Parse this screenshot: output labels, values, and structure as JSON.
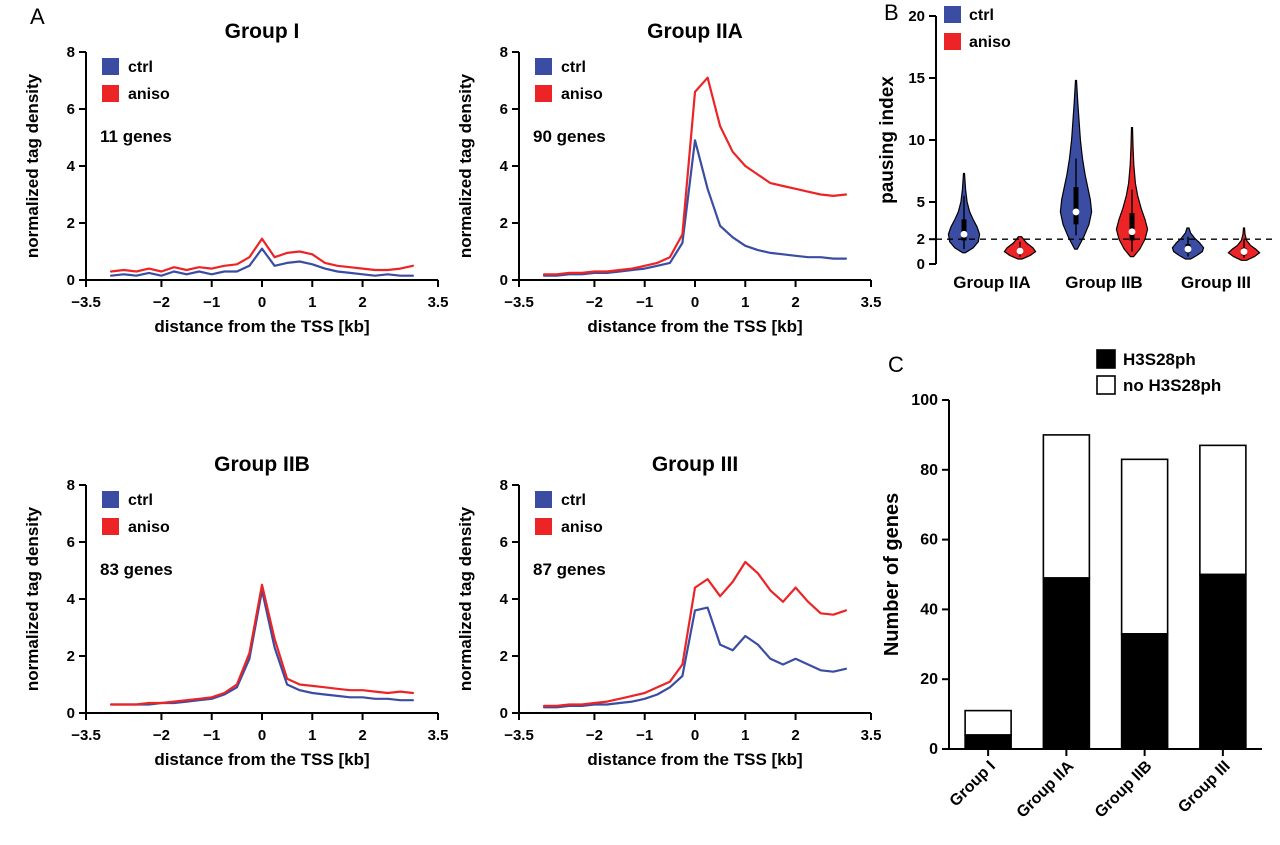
{
  "panel_labels": {
    "a": "A",
    "b": "B",
    "c": "C"
  },
  "colors": {
    "ctrl": "#3b4da2",
    "aniso": "#ec2426",
    "axis": "#000000",
    "black": "#000000",
    "white": "#ffffff"
  },
  "chart_data": [
    {
      "id": "group-i",
      "type": "line",
      "title": "Group I",
      "genes_label": "11 genes",
      "xlabel": "distance from the TSS [kb]",
      "ylabel": "normalized tag density",
      "xlim": [
        -3.5,
        3.5
      ],
      "ylim": [
        0,
        8
      ],
      "xticks": [
        -3.5,
        -2,
        -1,
        0,
        1,
        2,
        3.5
      ],
      "yticks": [
        0,
        2,
        4,
        6,
        8
      ],
      "legend": [
        {
          "name": "ctrl",
          "color_key": "ctrl"
        },
        {
          "name": "aniso",
          "color_key": "aniso"
        }
      ],
      "x": [
        -3,
        -2.75,
        -2.5,
        -2.25,
        -2,
        -1.75,
        -1.5,
        -1.25,
        -1,
        -0.75,
        -0.5,
        -0.25,
        0,
        0.25,
        0.5,
        0.75,
        1,
        1.25,
        1.5,
        1.75,
        2,
        2.25,
        2.5,
        2.75,
        3
      ],
      "series": [
        {
          "name": "ctrl",
          "color_key": "ctrl",
          "values": [
            0.15,
            0.2,
            0.15,
            0.25,
            0.15,
            0.3,
            0.2,
            0.3,
            0.2,
            0.3,
            0.3,
            0.5,
            1.1,
            0.5,
            0.6,
            0.65,
            0.55,
            0.4,
            0.3,
            0.25,
            0.2,
            0.15,
            0.2,
            0.15,
            0.15
          ]
        },
        {
          "name": "aniso",
          "color_key": "aniso",
          "values": [
            0.3,
            0.35,
            0.3,
            0.4,
            0.3,
            0.45,
            0.35,
            0.45,
            0.4,
            0.5,
            0.55,
            0.8,
            1.45,
            0.8,
            0.95,
            1.0,
            0.9,
            0.6,
            0.5,
            0.45,
            0.4,
            0.35,
            0.35,
            0.4,
            0.5
          ]
        }
      ]
    },
    {
      "id": "group-iia",
      "type": "line",
      "title": "Group IIA",
      "genes_label": "90 genes",
      "xlabel": "distance from the TSS [kb]",
      "ylabel": "normalized tag density",
      "xlim": [
        -3.5,
        3.5
      ],
      "ylim": [
        0,
        8
      ],
      "xticks": [
        -3.5,
        -2,
        -1,
        0,
        1,
        2,
        3.5
      ],
      "yticks": [
        0,
        2,
        4,
        6,
        8
      ],
      "legend": [
        {
          "name": "ctrl",
          "color_key": "ctrl"
        },
        {
          "name": "aniso",
          "color_key": "aniso"
        }
      ],
      "x": [
        -3,
        -2.75,
        -2.5,
        -2.25,
        -2,
        -1.75,
        -1.5,
        -1.25,
        -1,
        -0.75,
        -0.5,
        -0.25,
        0,
        0.25,
        0.5,
        0.75,
        1,
        1.25,
        1.5,
        1.75,
        2,
        2.25,
        2.5,
        2.75,
        3
      ],
      "series": [
        {
          "name": "ctrl",
          "color_key": "ctrl",
          "values": [
            0.15,
            0.15,
            0.2,
            0.2,
            0.25,
            0.25,
            0.3,
            0.35,
            0.4,
            0.5,
            0.6,
            1.3,
            4.9,
            3.2,
            1.9,
            1.5,
            1.2,
            1.05,
            0.95,
            0.9,
            0.85,
            0.8,
            0.8,
            0.75,
            0.75
          ]
        },
        {
          "name": "aniso",
          "color_key": "aniso",
          "values": [
            0.2,
            0.2,
            0.25,
            0.25,
            0.3,
            0.3,
            0.35,
            0.4,
            0.5,
            0.6,
            0.8,
            1.6,
            6.6,
            7.1,
            5.4,
            4.5,
            4.0,
            3.7,
            3.4,
            3.3,
            3.2,
            3.1,
            3.0,
            2.95,
            3.0
          ]
        }
      ]
    },
    {
      "id": "group-iib",
      "type": "line",
      "title": "Group IIB",
      "genes_label": "83 genes",
      "xlabel": "distance from the TSS [kb]",
      "ylabel": "normalized tag density",
      "xlim": [
        -3.5,
        3.5
      ],
      "ylim": [
        0,
        8
      ],
      "xticks": [
        -3.5,
        -2,
        -1,
        0,
        1,
        2,
        3.5
      ],
      "yticks": [
        0,
        2,
        4,
        6,
        8
      ],
      "legend": [
        {
          "name": "ctrl",
          "color_key": "ctrl"
        },
        {
          "name": "aniso",
          "color_key": "aniso"
        }
      ],
      "x": [
        -3,
        -2.75,
        -2.5,
        -2.25,
        -2,
        -1.75,
        -1.5,
        -1.25,
        -1,
        -0.75,
        -0.5,
        -0.25,
        0,
        0.25,
        0.5,
        0.75,
        1,
        1.25,
        1.5,
        1.75,
        2,
        2.25,
        2.5,
        2.75,
        3
      ],
      "series": [
        {
          "name": "ctrl",
          "color_key": "ctrl",
          "values": [
            0.3,
            0.3,
            0.3,
            0.3,
            0.35,
            0.35,
            0.4,
            0.45,
            0.5,
            0.65,
            0.9,
            1.9,
            4.3,
            2.3,
            1.0,
            0.8,
            0.7,
            0.65,
            0.6,
            0.55,
            0.55,
            0.5,
            0.5,
            0.45,
            0.45
          ]
        },
        {
          "name": "aniso",
          "color_key": "aniso",
          "values": [
            0.3,
            0.3,
            0.3,
            0.35,
            0.35,
            0.4,
            0.45,
            0.5,
            0.55,
            0.7,
            1.0,
            2.1,
            4.5,
            2.6,
            1.2,
            1.0,
            0.95,
            0.9,
            0.85,
            0.8,
            0.8,
            0.75,
            0.7,
            0.75,
            0.7
          ]
        }
      ]
    },
    {
      "id": "group-iii",
      "type": "line",
      "title": "Group III",
      "genes_label": "87 genes",
      "xlabel": "distance from the TSS [kb]",
      "ylabel": "normalized tag density",
      "xlim": [
        -3.5,
        3.5
      ],
      "ylim": [
        0,
        8
      ],
      "xticks": [
        -3.5,
        -2,
        -1,
        0,
        1,
        2,
        3.5
      ],
      "yticks": [
        0,
        2,
        4,
        6,
        8
      ],
      "legend": [
        {
          "name": "ctrl",
          "color_key": "ctrl"
        },
        {
          "name": "aniso",
          "color_key": "aniso"
        }
      ],
      "x": [
        -3,
        -2.75,
        -2.5,
        -2.25,
        -2,
        -1.75,
        -1.5,
        -1.25,
        -1,
        -0.75,
        -0.5,
        -0.25,
        0,
        0.25,
        0.5,
        0.75,
        1,
        1.25,
        1.5,
        1.75,
        2,
        2.25,
        2.5,
        2.75,
        3
      ],
      "series": [
        {
          "name": "ctrl",
          "color_key": "ctrl",
          "values": [
            0.2,
            0.2,
            0.25,
            0.25,
            0.3,
            0.3,
            0.35,
            0.4,
            0.5,
            0.65,
            0.9,
            1.3,
            3.6,
            3.7,
            2.4,
            2.2,
            2.7,
            2.4,
            1.9,
            1.7,
            1.9,
            1.7,
            1.5,
            1.45,
            1.55
          ]
        },
        {
          "name": "aniso",
          "color_key": "aniso",
          "values": [
            0.25,
            0.25,
            0.3,
            0.3,
            0.35,
            0.4,
            0.5,
            0.6,
            0.7,
            0.9,
            1.1,
            1.7,
            4.4,
            4.7,
            4.1,
            4.6,
            5.3,
            4.9,
            4.3,
            3.9,
            4.4,
            3.9,
            3.5,
            3.45,
            3.6
          ]
        }
      ]
    },
    {
      "id": "pausing-violin",
      "type": "violin",
      "ylabel": "pausing index",
      "ylim": [
        0,
        20
      ],
      "yticks": [
        0,
        2,
        5,
        10,
        15,
        20
      ],
      "dashed_line_y": 2,
      "legend": [
        {
          "name": "ctrl",
          "color_key": "ctrl"
        },
        {
          "name": "aniso",
          "color_key": "aniso"
        }
      ],
      "groups": [
        {
          "label": "Group IIA",
          "violins": [
            {
              "series": "ctrl",
              "color_key": "ctrl",
              "median": 2.4,
              "box": [
                1.9,
                3.6
              ],
              "whisker": [
                1.2,
                5.5
              ],
              "profile": [
                [
                  0.9,
                  0.05
                ],
                [
                  1.3,
                  0.35
                ],
                [
                  1.8,
                  0.55
                ],
                [
                  2.4,
                  0.6
                ],
                [
                  3.0,
                  0.5
                ],
                [
                  3.6,
                  0.35
                ],
                [
                  4.2,
                  0.22
                ],
                [
                  5.0,
                  0.12
                ],
                [
                  6.0,
                  0.06
                ],
                [
                  7.3,
                  0.02
                ]
              ]
            },
            {
              "series": "aniso",
              "color_key": "aniso",
              "median": 1.05,
              "box": [
                0.8,
                1.3
              ],
              "whisker": [
                0.6,
                1.8
              ],
              "profile": [
                [
                  0.4,
                  0.08
                ],
                [
                  0.7,
                  0.4
                ],
                [
                  1.0,
                  0.6
                ],
                [
                  1.3,
                  0.5
                ],
                [
                  1.7,
                  0.25
                ],
                [
                  2.2,
                  0.06
                ]
              ]
            }
          ]
        },
        {
          "label": "Group IIB",
          "violins": [
            {
              "series": "ctrl",
              "color_key": "ctrl",
              "median": 4.2,
              "box": [
                3.2,
                6.2
              ],
              "whisker": [
                2.3,
                8.5
              ],
              "profile": [
                [
                  1.2,
                  0.05
                ],
                [
                  2.2,
                  0.3
                ],
                [
                  3.2,
                  0.5
                ],
                [
                  4.2,
                  0.6
                ],
                [
                  5.2,
                  0.55
                ],
                [
                  6.2,
                  0.45
                ],
                [
                  7.2,
                  0.35
                ],
                [
                  8.5,
                  0.25
                ],
                [
                  10,
                  0.17
                ],
                [
                  11.5,
                  0.12
                ],
                [
                  13,
                  0.07
                ],
                [
                  14.8,
                  0.02
                ]
              ]
            },
            {
              "series": "aniso",
              "color_key": "aniso",
              "median": 2.6,
              "box": [
                1.9,
                4.1
              ],
              "whisker": [
                1.0,
                6.0
              ],
              "profile": [
                [
                  0.6,
                  0.06
                ],
                [
                  1.2,
                  0.3
                ],
                [
                  2.0,
                  0.5
                ],
                [
                  2.8,
                  0.6
                ],
                [
                  3.6,
                  0.5
                ],
                [
                  4.5,
                  0.35
                ],
                [
                  5.5,
                  0.22
                ],
                [
                  6.5,
                  0.13
                ],
                [
                  8,
                  0.07
                ],
                [
                  9.5,
                  0.04
                ],
                [
                  11,
                  0.02
                ]
              ]
            }
          ]
        },
        {
          "label": "Group III",
          "violins": [
            {
              "series": "ctrl",
              "color_key": "ctrl",
              "median": 1.2,
              "box": [
                0.9,
                1.6
              ],
              "whisker": [
                0.6,
                2.2
              ],
              "profile": [
                [
                  0.4,
                  0.1
                ],
                [
                  0.7,
                  0.35
                ],
                [
                  1.0,
                  0.55
                ],
                [
                  1.3,
                  0.6
                ],
                [
                  1.7,
                  0.45
                ],
                [
                  2.1,
                  0.25
                ],
                [
                  2.5,
                  0.1
                ],
                [
                  2.9,
                  0.04
                ]
              ]
            },
            {
              "series": "aniso",
              "color_key": "aniso",
              "median": 1.0,
              "box": [
                0.7,
                1.3
              ],
              "whisker": [
                0.5,
                2.0
              ],
              "profile": [
                [
                  0.3,
                  0.1
                ],
                [
                  0.6,
                  0.4
                ],
                [
                  0.9,
                  0.6
                ],
                [
                  1.2,
                  0.45
                ],
                [
                  1.5,
                  0.25
                ],
                [
                  1.9,
                  0.1
                ],
                [
                  2.4,
                  0.04
                ],
                [
                  2.9,
                  0.02
                ]
              ]
            }
          ]
        }
      ]
    },
    {
      "id": "genes-bar",
      "type": "stacked_bar",
      "ylabel": "Number of genes",
      "ylim": [
        0,
        100
      ],
      "yticks": [
        0,
        20,
        40,
        60,
        80,
        100
      ],
      "categories": [
        "Group I",
        "Group IIA",
        "Group IIB",
        "Group III"
      ],
      "series": [
        {
          "name": "H3S28ph",
          "fill_key": "black",
          "values": [
            4,
            49,
            33,
            50
          ]
        },
        {
          "name": "no H3S28ph",
          "fill_key": "white",
          "values": [
            7,
            41,
            50,
            37
          ]
        }
      ],
      "totals": [
        11,
        90,
        83,
        87
      ]
    }
  ]
}
